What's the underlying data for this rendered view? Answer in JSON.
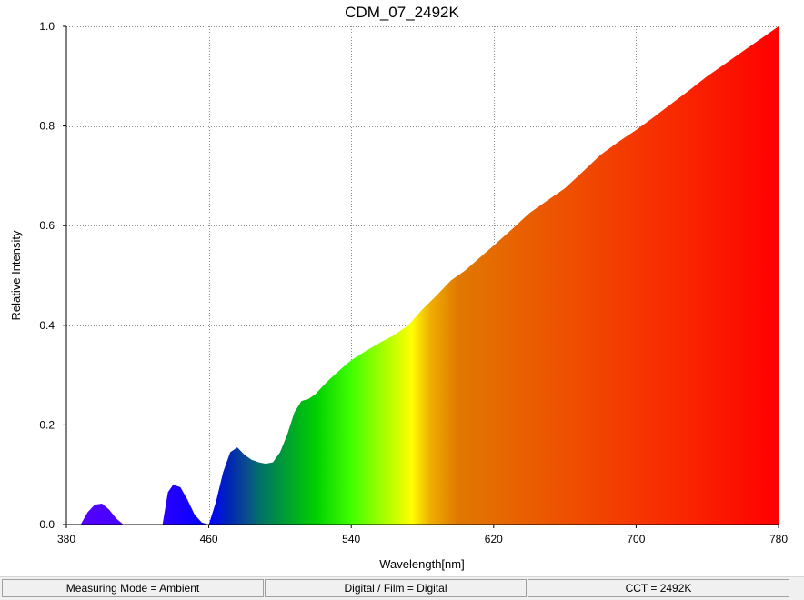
{
  "chart_data": {
    "type": "area",
    "title": "CDM_07_2492K",
    "xlabel": "Wavelength[nm]",
    "ylabel": "Relative Intensity",
    "xlim": [
      380,
      780
    ],
    "ylim": [
      0,
      1.0
    ],
    "xticks": [
      "380",
      "460",
      "540",
      "620",
      "700",
      "780"
    ],
    "yticks": [
      "0.0",
      "0.2",
      "0.4",
      "0.6",
      "0.8",
      "1.0"
    ],
    "grid": true,
    "x": [
      388,
      392,
      396,
      400,
      404,
      408,
      412,
      434,
      437,
      440,
      444,
      448,
      452,
      456,
      460,
      464,
      468,
      472,
      476,
      480,
      484,
      488,
      492,
      496,
      500,
      504,
      508,
      512,
      516,
      520,
      524,
      528,
      532,
      536,
      540,
      548,
      556,
      564,
      572,
      580,
      588,
      596,
      604,
      612,
      620,
      630,
      640,
      650,
      660,
      670,
      680,
      690,
      700,
      710,
      720,
      730,
      740,
      750,
      760,
      770,
      780
    ],
    "y": [
      0.0,
      0.025,
      0.04,
      0.042,
      0.03,
      0.012,
      0.0,
      0.0,
      0.065,
      0.08,
      0.075,
      0.05,
      0.02,
      0.004,
      0.0,
      0.045,
      0.105,
      0.145,
      0.155,
      0.14,
      0.13,
      0.125,
      0.122,
      0.125,
      0.145,
      0.18,
      0.225,
      0.248,
      0.252,
      0.262,
      0.278,
      0.292,
      0.305,
      0.318,
      0.33,
      0.348,
      0.365,
      0.38,
      0.4,
      0.432,
      0.46,
      0.49,
      0.51,
      0.535,
      0.56,
      0.592,
      0.625,
      0.65,
      0.675,
      0.708,
      0.742,
      0.768,
      0.792,
      0.818,
      0.845,
      0.872,
      0.9,
      0.925,
      0.95,
      0.975,
      1.0
    ]
  },
  "status": {
    "mode": "Measuring Mode = Ambient",
    "digital": "Digital / Film = Digital",
    "cct": "CCT = 2492K"
  }
}
